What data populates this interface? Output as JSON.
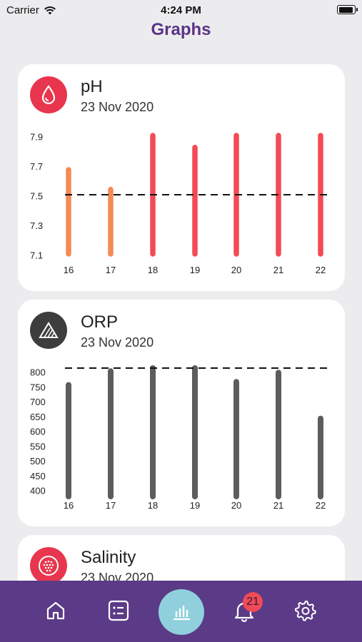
{
  "status_bar": {
    "carrier": "Carrier",
    "time": "4:24 PM"
  },
  "page": {
    "title": "Graphs"
  },
  "cards": {
    "ph": {
      "title": "pH",
      "date": "23 Nov 2020",
      "icon": "water-drop-icon",
      "icon_color": "#e8364e"
    },
    "orp": {
      "title": "ORP",
      "date": "23 Nov 2020",
      "icon": "mountain-icon",
      "icon_color": "#3d3d3d"
    },
    "salinity": {
      "title": "Salinity",
      "date": "23 Nov 2020",
      "icon": "salt-dots-icon",
      "icon_color": "#e8364e"
    }
  },
  "chart_data": [
    {
      "id": "ph",
      "type": "bar",
      "title": "pH",
      "categories": [
        "16",
        "17",
        "18",
        "19",
        "20",
        "21",
        "22"
      ],
      "values": [
        7.74,
        7.59,
        8.0,
        7.91,
        8.0,
        8.0,
        8.0
      ],
      "bar_colors": [
        "#f58a55",
        "#f58a55",
        "#f44a55",
        "#f44a55",
        "#f44a55",
        "#f44a55",
        "#f44a55"
      ],
      "yticks": [
        "7.9",
        "7.7",
        "7.5",
        "7.3",
        "7.1"
      ],
      "ylim": [
        7.1,
        7.9
      ],
      "target_line": 7.55,
      "grid": false
    },
    {
      "id": "orp",
      "type": "bar",
      "title": "ORP",
      "categories": [
        "16",
        "17",
        "18",
        "19",
        "20",
        "21",
        "22"
      ],
      "values": [
        765,
        810,
        820,
        820,
        775,
        805,
        655
      ],
      "bar_colors": [
        "#5d5d5d",
        "#5d5d5d",
        "#5d5d5d",
        "#5d5d5d",
        "#5d5d5d",
        "#5d5d5d",
        "#5d5d5d"
      ],
      "yticks": [
        "800",
        "750",
        "700",
        "650",
        "600",
        "550",
        "500",
        "450",
        "400"
      ],
      "ylim": [
        400,
        800
      ],
      "target_line": 820,
      "grid": false
    }
  ],
  "bottom_nav": {
    "items": [
      {
        "icon": "home-icon"
      },
      {
        "icon": "list-icon"
      },
      {
        "icon": "bar-chart-icon"
      },
      {
        "icon": "bell-icon"
      },
      {
        "icon": "gear-icon"
      }
    ],
    "notification_count": "21",
    "bar_color": "#5b3a87",
    "active_color": "#8fd0dc"
  }
}
